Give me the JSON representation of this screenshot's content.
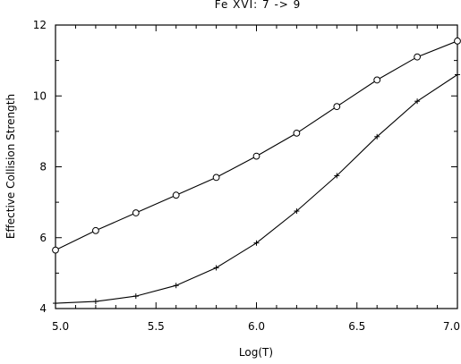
{
  "chart_data": {
    "type": "line",
    "title": "Fe XVI: 7 -> 9",
    "xlabel": "Log(T)",
    "ylabel": "Effective Collision Strength",
    "xlim": [
      5.0,
      7.0
    ],
    "ylim": [
      4,
      12
    ],
    "xticks": [
      "5.0",
      "5.5",
      "6.0",
      "6.5",
      "7.0"
    ],
    "yticks": [
      "4",
      "6",
      "8",
      "10",
      "12"
    ],
    "grid": false,
    "legend": "none",
    "series": [
      {
        "marker": "circle",
        "x": [
          5.0,
          5.2,
          5.4,
          5.6,
          5.8,
          6.0,
          6.2,
          6.4,
          6.6,
          6.8,
          7.0
        ],
        "y": [
          5.65,
          6.2,
          6.7,
          7.2,
          7.7,
          8.3,
          8.95,
          9.7,
          10.45,
          11.1,
          11.55
        ]
      },
      {
        "marker": "plus",
        "x": [
          5.0,
          5.2,
          5.4,
          5.6,
          5.8,
          6.0,
          6.2,
          6.4,
          6.6,
          6.8,
          7.0
        ],
        "y": [
          4.15,
          4.2,
          4.35,
          4.65,
          5.15,
          5.85,
          6.75,
          7.75,
          8.85,
          9.85,
          10.6
        ]
      }
    ]
  }
}
